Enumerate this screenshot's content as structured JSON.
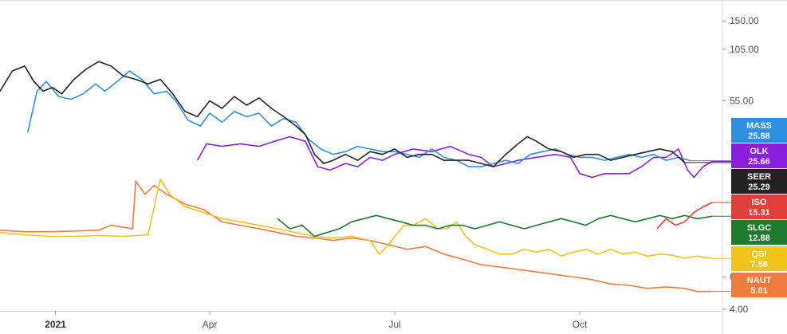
{
  "chart_data": {
    "type": "line",
    "y_scale": "log",
    "ylim": [
      4,
      180
    ],
    "y_ticks": [
      {
        "value": 150,
        "label": "150.00"
      },
      {
        "value": 105,
        "label": "105.00"
      },
      {
        "value": 55,
        "label": "55.00"
      },
      {
        "value": 6,
        "label": "6.00"
      },
      {
        "value": 4,
        "label": "4.00"
      }
    ],
    "x_ticks": [
      {
        "x": 0.5,
        "label": "2021",
        "bold": true
      },
      {
        "x": 3.0,
        "label": "Apr",
        "bold": false
      },
      {
        "x": 6.0,
        "label": "Jul",
        "bold": false
      },
      {
        "x": 9.0,
        "label": "Oct",
        "bold": false
      }
    ],
    "xlim": [
      -0.4,
      11.3
    ],
    "grid": false,
    "legend": "right edge value badges",
    "series": [
      {
        "name": "MASS",
        "color": "#2e8fe0",
        "last_label": "25.88",
        "points": [
          [
            -0.3,
            null
          ],
          [
            0.05,
            37
          ],
          [
            0.2,
            62
          ],
          [
            0.35,
            70
          ],
          [
            0.55,
            58
          ],
          [
            0.75,
            56
          ],
          [
            0.95,
            60
          ],
          [
            1.15,
            68
          ],
          [
            1.3,
            62
          ],
          [
            1.5,
            70
          ],
          [
            1.7,
            80
          ],
          [
            1.9,
            72
          ],
          [
            2.1,
            60
          ],
          [
            2.3,
            62
          ],
          [
            2.45,
            55
          ],
          [
            2.65,
            43
          ],
          [
            2.85,
            40
          ],
          [
            3.0,
            47
          ],
          [
            3.2,
            42
          ],
          [
            3.4,
            48
          ],
          [
            3.6,
            45
          ],
          [
            3.8,
            47
          ],
          [
            4.0,
            40
          ],
          [
            4.2,
            44
          ],
          [
            4.4,
            42
          ],
          [
            4.6,
            34
          ],
          [
            4.8,
            30
          ],
          [
            5.0,
            28
          ],
          [
            5.2,
            29
          ],
          [
            5.4,
            31
          ],
          [
            5.6,
            30
          ],
          [
            5.8,
            29
          ],
          [
            6.0,
            29
          ],
          [
            6.2,
            28
          ],
          [
            6.4,
            27
          ],
          [
            6.6,
            30
          ],
          [
            6.8,
            27
          ],
          [
            7.0,
            26
          ],
          [
            7.2,
            24
          ],
          [
            7.4,
            24
          ],
          [
            7.6,
            25
          ],
          [
            7.8,
            26
          ],
          [
            8.0,
            25
          ],
          [
            8.2,
            28
          ],
          [
            8.4,
            29
          ],
          [
            8.6,
            30
          ],
          [
            8.8,
            28
          ],
          [
            9.0,
            27
          ],
          [
            9.2,
            27
          ],
          [
            9.4,
            26
          ],
          [
            9.6,
            27
          ],
          [
            9.8,
            28
          ],
          [
            10.0,
            27
          ],
          [
            10.2,
            28
          ],
          [
            10.4,
            26
          ],
          [
            10.6,
            27
          ],
          [
            10.8,
            25.88
          ]
        ]
      },
      {
        "name": "OLK",
        "color": "#8a1fe0",
        "last_label": "25.66",
        "points": [
          [
            2.8,
            26
          ],
          [
            2.95,
            32
          ],
          [
            3.2,
            31
          ],
          [
            3.5,
            32
          ],
          [
            3.8,
            31
          ],
          [
            4.05,
            33
          ],
          [
            4.3,
            35
          ],
          [
            4.55,
            33
          ],
          [
            4.75,
            24
          ],
          [
            4.95,
            23
          ],
          [
            5.2,
            25
          ],
          [
            5.4,
            24
          ],
          [
            5.6,
            27
          ],
          [
            5.8,
            26
          ],
          [
            6.0,
            28
          ],
          [
            6.3,
            30
          ],
          [
            6.6,
            29
          ],
          [
            6.9,
            31
          ],
          [
            7.2,
            28
          ],
          [
            7.4,
            27
          ],
          [
            7.6,
            24
          ],
          [
            7.8,
            25
          ],
          [
            8.0,
            26
          ],
          [
            8.3,
            27
          ],
          [
            8.6,
            28
          ],
          [
            8.85,
            27
          ],
          [
            9.0,
            22
          ],
          [
            9.2,
            21
          ],
          [
            9.4,
            22
          ],
          [
            9.6,
            22
          ],
          [
            9.8,
            22
          ],
          [
            10.0,
            24
          ],
          [
            10.2,
            27
          ],
          [
            10.4,
            27
          ],
          [
            10.6,
            30
          ],
          [
            10.75,
            23
          ],
          [
            10.85,
            21
          ],
          [
            11.0,
            24
          ],
          [
            11.15,
            25.66
          ]
        ]
      },
      {
        "name": "SEER",
        "color": "#222222",
        "last_label": "25.29",
        "points": [
          [
            -0.4,
            62
          ],
          [
            -0.2,
            80
          ],
          [
            0.0,
            85
          ],
          [
            0.15,
            70
          ],
          [
            0.3,
            62
          ],
          [
            0.45,
            65
          ],
          [
            0.6,
            60
          ],
          [
            0.8,
            72
          ],
          [
            1.0,
            82
          ],
          [
            1.2,
            90
          ],
          [
            1.4,
            85
          ],
          [
            1.6,
            75
          ],
          [
            1.8,
            72
          ],
          [
            2.0,
            68
          ],
          [
            2.2,
            72
          ],
          [
            2.4,
            60
          ],
          [
            2.6,
            48
          ],
          [
            2.8,
            45
          ],
          [
            3.0,
            55
          ],
          [
            3.2,
            50
          ],
          [
            3.4,
            58
          ],
          [
            3.6,
            52
          ],
          [
            3.8,
            57
          ],
          [
            4.0,
            50
          ],
          [
            4.2,
            45
          ],
          [
            4.4,
            40
          ],
          [
            4.55,
            36
          ],
          [
            4.7,
            28
          ],
          [
            4.85,
            25
          ],
          [
            5.0,
            26
          ],
          [
            5.2,
            28
          ],
          [
            5.4,
            26
          ],
          [
            5.6,
            29
          ],
          [
            5.8,
            28
          ],
          [
            6.0,
            30
          ],
          [
            6.2,
            27
          ],
          [
            6.4,
            28
          ],
          [
            6.6,
            28
          ],
          [
            6.8,
            26
          ],
          [
            7.0,
            26
          ],
          [
            7.2,
            26
          ],
          [
            7.4,
            25
          ],
          [
            7.6,
            24
          ],
          [
            7.8,
            28
          ],
          [
            8.0,
            32
          ],
          [
            8.15,
            35
          ],
          [
            8.3,
            33
          ],
          [
            8.5,
            30
          ],
          [
            8.7,
            29
          ],
          [
            8.9,
            27
          ],
          [
            9.1,
            28
          ],
          [
            9.3,
            28
          ],
          [
            9.5,
            26
          ],
          [
            9.7,
            27
          ],
          [
            9.9,
            28
          ],
          [
            10.1,
            29
          ],
          [
            10.3,
            30
          ],
          [
            10.5,
            29
          ],
          [
            10.7,
            25.29
          ]
        ]
      },
      {
        "name": "ISO",
        "color": "#e0403a",
        "last_label": "15.31",
        "points": [
          [
            10.25,
            11.0
          ],
          [
            10.4,
            12.5
          ],
          [
            10.55,
            11.5
          ],
          [
            10.7,
            12.0
          ],
          [
            10.85,
            13.5
          ],
          [
            11.0,
            14.5
          ],
          [
            11.15,
            15.31
          ]
        ]
      },
      {
        "name": "SLGC",
        "color": "#1e7a2e",
        "last_label": "12.88",
        "points": [
          [
            4.1,
            12.5
          ],
          [
            4.3,
            11.0
          ],
          [
            4.5,
            11.5
          ],
          [
            4.7,
            10.0
          ],
          [
            4.9,
            10.5
          ],
          [
            5.1,
            11.0
          ],
          [
            5.3,
            12.0
          ],
          [
            5.5,
            12.5
          ],
          [
            5.7,
            13.0
          ],
          [
            5.9,
            12.5
          ],
          [
            6.1,
            12.0
          ],
          [
            6.3,
            11.5
          ],
          [
            6.5,
            11.5
          ],
          [
            6.7,
            11.0
          ],
          [
            6.9,
            11.5
          ],
          [
            7.1,
            11.5
          ],
          [
            7.3,
            11.0
          ],
          [
            7.5,
            11.5
          ],
          [
            7.7,
            12.0
          ],
          [
            7.9,
            11.5
          ],
          [
            8.1,
            11.0
          ],
          [
            8.3,
            11.5
          ],
          [
            8.5,
            12.0
          ],
          [
            8.7,
            12.5
          ],
          [
            8.9,
            12.0
          ],
          [
            9.1,
            11.5
          ],
          [
            9.3,
            12.5
          ],
          [
            9.5,
            13.0
          ],
          [
            9.7,
            12.5
          ],
          [
            9.9,
            12.0
          ],
          [
            10.1,
            12.5
          ],
          [
            10.3,
            13.0
          ],
          [
            10.5,
            12.5
          ],
          [
            10.7,
            13.0
          ],
          [
            10.9,
            12.5
          ],
          [
            11.15,
            12.88
          ]
        ]
      },
      {
        "name": "QSI",
        "color": "#f0c419",
        "last_label": "7.58",
        "points": [
          [
            -0.4,
            10.5
          ],
          [
            0.0,
            10.2
          ],
          [
            0.4,
            10.0
          ],
          [
            0.8,
            10.0
          ],
          [
            1.2,
            10.1
          ],
          [
            1.6,
            10.0
          ],
          [
            2.0,
            10.2
          ],
          [
            2.1,
            14.5
          ],
          [
            2.2,
            20.5
          ],
          [
            2.35,
            17.0
          ],
          [
            2.6,
            14.5
          ],
          [
            2.9,
            13.5
          ],
          [
            3.2,
            12.5
          ],
          [
            3.5,
            12.0
          ],
          [
            3.8,
            11.5
          ],
          [
            4.1,
            11.0
          ],
          [
            4.4,
            10.5
          ],
          [
            4.7,
            10.0
          ],
          [
            5.0,
            9.8
          ],
          [
            5.3,
            10.0
          ],
          [
            5.6,
            9.5
          ],
          [
            5.75,
            8.0
          ],
          [
            5.9,
            9.0
          ],
          [
            6.0,
            10.0
          ],
          [
            6.15,
            11.5
          ],
          [
            6.3,
            11.5
          ],
          [
            6.5,
            12.5
          ],
          [
            6.7,
            11.0
          ],
          [
            6.85,
            11.0
          ],
          [
            7.0,
            12.0
          ],
          [
            7.15,
            10.0
          ],
          [
            7.3,
            9.0
          ],
          [
            7.5,
            8.5
          ],
          [
            7.7,
            8.0
          ],
          [
            7.9,
            8.0
          ],
          [
            8.1,
            8.5
          ],
          [
            8.3,
            8.2
          ],
          [
            8.5,
            8.5
          ],
          [
            8.7,
            7.8
          ],
          [
            8.9,
            8.2
          ],
          [
            9.1,
            8.5
          ],
          [
            9.3,
            8.0
          ],
          [
            9.5,
            8.5
          ],
          [
            9.7,
            8.0
          ],
          [
            9.9,
            8.2
          ],
          [
            10.1,
            7.8
          ],
          [
            10.3,
            8.0
          ],
          [
            10.5,
            7.9
          ],
          [
            10.7,
            7.6
          ],
          [
            10.9,
            7.8
          ],
          [
            11.15,
            7.58
          ]
        ]
      },
      {
        "name": "NAUT",
        "color": "#f07b3e",
        "last_label": "5.01",
        "points": [
          [
            -0.4,
            10.8
          ],
          [
            0.0,
            10.6
          ],
          [
            0.4,
            10.6
          ],
          [
            0.8,
            10.7
          ],
          [
            1.2,
            10.8
          ],
          [
            1.4,
            11.5
          ],
          [
            1.6,
            11.2
          ],
          [
            1.75,
            11.0
          ],
          [
            1.8,
            20.0
          ],
          [
            1.95,
            17.0
          ],
          [
            2.1,
            19.0
          ],
          [
            2.3,
            17.0
          ],
          [
            2.6,
            15.0
          ],
          [
            2.9,
            14.0
          ],
          [
            3.2,
            12.0
          ],
          [
            3.5,
            11.5
          ],
          [
            3.8,
            11.0
          ],
          [
            4.1,
            10.5
          ],
          [
            4.4,
            10.0
          ],
          [
            4.7,
            9.8
          ],
          [
            5.0,
            9.5
          ],
          [
            5.3,
            9.8
          ],
          [
            5.6,
            9.5
          ],
          [
            5.9,
            9.0
          ],
          [
            6.2,
            8.5
          ],
          [
            6.5,
            8.8
          ],
          [
            6.8,
            8.0
          ],
          [
            7.1,
            7.5
          ],
          [
            7.4,
            7.0
          ],
          [
            7.7,
            6.8
          ],
          [
            8.0,
            6.6
          ],
          [
            8.3,
            6.4
          ],
          [
            8.6,
            6.2
          ],
          [
            8.9,
            6.0
          ],
          [
            9.2,
            5.8
          ],
          [
            9.5,
            5.5
          ],
          [
            9.8,
            5.4
          ],
          [
            10.1,
            5.2
          ],
          [
            10.4,
            5.3
          ],
          [
            10.7,
            5.2
          ],
          [
            10.9,
            5.0
          ],
          [
            11.15,
            5.01
          ]
        ]
      }
    ]
  }
}
